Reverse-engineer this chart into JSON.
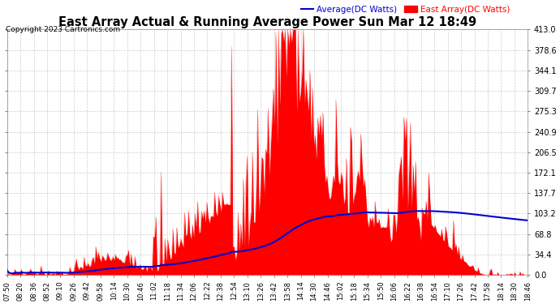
{
  "title": "East Array Actual & Running Average Power Sun Mar 12 18:49",
  "copyright": "Copyright 2023 Cartronics.com",
  "legend_avg": "Average(DC Watts)",
  "legend_east": "East Array(DC Watts)",
  "ylabel_right_ticks": [
    0.0,
    34.4,
    68.8,
    103.2,
    137.7,
    172.1,
    206.5,
    240.9,
    275.3,
    309.7,
    344.1,
    378.6,
    413.0
  ],
  "ymax": 413.0,
  "ymin": 0.0,
  "bg_color": "#ffffff",
  "plot_bg_color": "#ffffff",
  "grid_color": "#cccccc",
  "title_color": "#000000",
  "avg_line_color": "#0000cc",
  "east_fill_color": "#ff0000",
  "east_line_color": "#ff0000",
  "copyright_color": "#000000",
  "legend_avg_color": "#0000cc",
  "legend_east_color": "#ff0000",
  "xtick_labels": [
    "07:50",
    "08:20",
    "08:36",
    "08:52",
    "09:10",
    "09:26",
    "09:42",
    "09:58",
    "10:14",
    "10:30",
    "10:46",
    "11:02",
    "11:18",
    "11:34",
    "12:06",
    "12:22",
    "12:38",
    "12:54",
    "13:10",
    "13:26",
    "13:42",
    "13:58",
    "14:14",
    "14:30",
    "14:46",
    "15:02",
    "15:18",
    "15:34",
    "15:50",
    "16:06",
    "16:22",
    "16:38",
    "16:54",
    "17:10",
    "17:26",
    "17:42",
    "17:58",
    "18:14",
    "18:30",
    "18:46"
  ]
}
